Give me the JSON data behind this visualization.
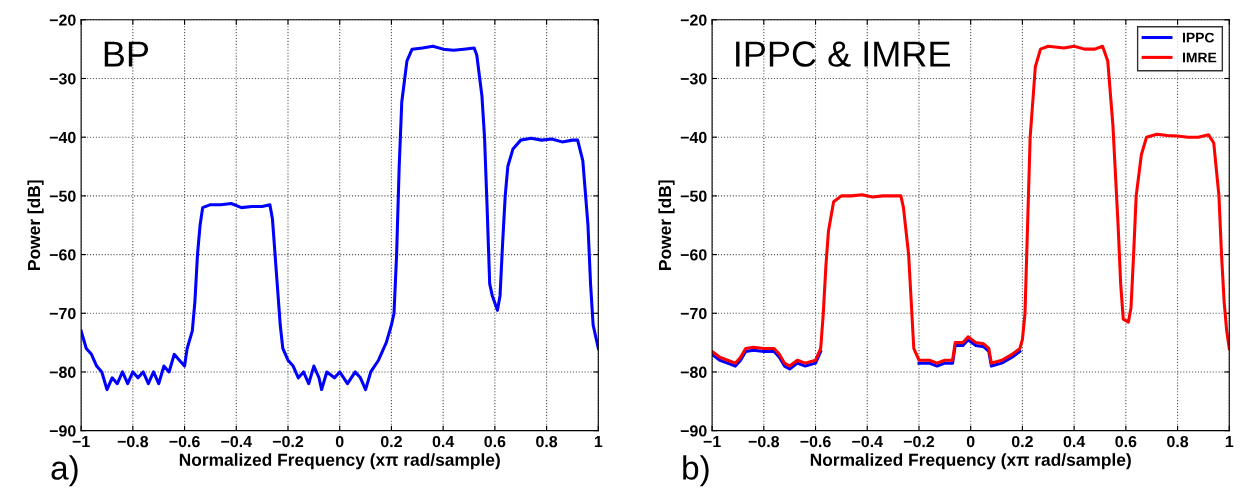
{
  "chart_data": [
    {
      "type": "line",
      "title": "BP",
      "xlabel": "Normalized Frequency (xπ rad/sample)",
      "ylabel": "Power [dB]",
      "annotations": [
        "a)"
      ],
      "xlim": [
        -1,
        1
      ],
      "ylim": [
        -90,
        -20
      ],
      "xticks": [
        {
          "value": -1,
          "label": "−1"
        },
        {
          "value": -0.8,
          "label": "−0.8"
        },
        {
          "value": -0.6,
          "label": "−0.6"
        },
        {
          "value": -0.4,
          "label": "−0.4"
        },
        {
          "value": -0.2,
          "label": "−0.2"
        },
        0,
        0.2,
        0.4,
        0.6,
        0.8,
        1
      ],
      "yticks": [
        {
          "value": -90,
          "label": "−90"
        },
        {
          "value": -80,
          "label": "−80"
        },
        {
          "value": -70,
          "label": "−70"
        },
        {
          "value": -60,
          "label": "−60"
        },
        {
          "value": -50,
          "label": "−50"
        },
        {
          "value": -40,
          "label": "−40"
        },
        {
          "value": -30,
          "label": "−30"
        },
        {
          "value": -20,
          "label": "−20"
        }
      ],
      "grid": true,
      "legend": false,
      "marker": "none",
      "line_style": "solid",
      "x": [
        -1,
        -0.98,
        -0.96,
        -0.94,
        -0.92,
        -0.9,
        -0.88,
        -0.86,
        -0.84,
        -0.82,
        -0.8,
        -0.78,
        -0.76,
        -0.74,
        -0.72,
        -0.7,
        -0.68,
        -0.66,
        -0.64,
        -0.62,
        -0.6,
        -0.59,
        -0.57,
        -0.56,
        -0.55,
        -0.54,
        -0.53,
        -0.5,
        -0.46,
        -0.42,
        -0.38,
        -0.34,
        -0.3,
        -0.27,
        -0.26,
        -0.25,
        -0.24,
        -0.23,
        -0.22,
        -0.2,
        -0.18,
        -0.16,
        -0.14,
        -0.12,
        -0.1,
        -0.08,
        -0.07,
        -0.05,
        -0.02,
        0,
        0.03,
        0.06,
        0.08,
        0.1,
        0.12,
        0.15,
        0.18,
        0.2,
        0.21,
        0.22,
        0.23,
        0.24,
        0.26,
        0.28,
        0.32,
        0.36,
        0.4,
        0.44,
        0.48,
        0.52,
        0.53,
        0.55,
        0.56,
        0.57,
        0.58,
        0.59,
        0.61,
        0.62,
        0.63,
        0.64,
        0.65,
        0.67,
        0.7,
        0.74,
        0.78,
        0.82,
        0.86,
        0.9,
        0.92,
        0.94,
        0.96,
        0.97,
        0.98,
        0.99,
        1
      ],
      "series": [
        {
          "color": "#0000ff",
          "values": [
            -73,
            -76,
            -77,
            -79,
            -80,
            -83,
            -81,
            -82,
            -80,
            -82,
            -80,
            -81,
            -80,
            -82,
            -80,
            -82,
            -79,
            -80,
            -77,
            -78,
            -79,
            -76,
            -73,
            -68,
            -60,
            -55,
            -52,
            -51.5,
            -51.5,
            -51.3,
            -52,
            -51.8,
            -51.8,
            -51.5,
            -54,
            -60,
            -66,
            -72,
            -76,
            -78,
            -79,
            -81,
            -80,
            -82,
            -79,
            -81,
            -83,
            -80,
            -81,
            -80,
            -82,
            -80,
            -81,
            -83,
            -80,
            -78,
            -75,
            -72,
            -70,
            -60,
            -45,
            -34,
            -27,
            -25,
            -24.8,
            -24.5,
            -25,
            -25.2,
            -25,
            -24.8,
            -26,
            -33,
            -40,
            -52,
            -65,
            -67,
            -69.5,
            -67,
            -58,
            -50,
            -45,
            -42,
            -40.5,
            -40.2,
            -40.5,
            -40.3,
            -40.8,
            -40.5,
            -40.5,
            -44,
            -55,
            -65,
            -72,
            -74,
            -76
          ]
        }
      ]
    },
    {
      "type": "line",
      "title": "IPPC & IMRE",
      "xlabel": "Normalized Frequency (xπ rad/sample)",
      "ylabel": "Power [dB]",
      "annotations": [
        "b)"
      ],
      "xlim": [
        -1,
        1
      ],
      "ylim": [
        -90,
        -20
      ],
      "xticks": [
        {
          "value": -1,
          "label": "−1"
        },
        {
          "value": -0.8,
          "label": "−0.8"
        },
        {
          "value": -0.6,
          "label": "−0.6"
        },
        {
          "value": -0.4,
          "label": "−0.4"
        },
        {
          "value": -0.2,
          "label": "−0.2"
        },
        0,
        0.2,
        0.4,
        0.6,
        0.8,
        1
      ],
      "yticks": [
        {
          "value": -90,
          "label": "−90"
        },
        {
          "value": -80,
          "label": "−80"
        },
        {
          "value": -70,
          "label": "−70"
        },
        {
          "value": -60,
          "label": "−60"
        },
        {
          "value": -50,
          "label": "−50"
        },
        {
          "value": -40,
          "label": "−40"
        },
        {
          "value": -30,
          "label": "−30"
        },
        {
          "value": -20,
          "label": "−20"
        }
      ],
      "grid": true,
      "legend": "top right",
      "marker": "none",
      "line_style": "solid",
      "x": [
        -1,
        -0.97,
        -0.94,
        -0.91,
        -0.89,
        -0.87,
        -0.84,
        -0.8,
        -0.76,
        -0.74,
        -0.72,
        -0.7,
        -0.67,
        -0.64,
        -0.6,
        -0.58,
        -0.57,
        -0.56,
        -0.55,
        -0.53,
        -0.5,
        -0.46,
        -0.42,
        -0.38,
        -0.34,
        -0.3,
        -0.27,
        -0.26,
        -0.24,
        -0.23,
        -0.22,
        -0.2,
        -0.16,
        -0.13,
        -0.1,
        -0.07,
        -0.06,
        -0.03,
        -0.01,
        0.02,
        0.05,
        0.07,
        0.08,
        0.12,
        0.16,
        0.19,
        0.2,
        0.21,
        0.22,
        0.23,
        0.25,
        0.27,
        0.3,
        0.36,
        0.4,
        0.44,
        0.48,
        0.51,
        0.53,
        0.55,
        0.57,
        0.58,
        0.59,
        0.61,
        0.62,
        0.63,
        0.64,
        0.66,
        0.68,
        0.72,
        0.76,
        0.8,
        0.84,
        0.88,
        0.92,
        0.94,
        0.96,
        0.97,
        0.98,
        0.99,
        1
      ],
      "series": [
        {
          "name": "IPPC",
          "color": "#0000ff",
          "values": [
            -77,
            -78,
            -78.5,
            -79,
            -78,
            -76.5,
            -76.3,
            -76.5,
            -76.5,
            -77.5,
            -79,
            -79.5,
            -78.5,
            -79,
            -78.5,
            -76.5,
            null,
            null,
            null,
            null,
            null,
            null,
            null,
            null,
            null,
            null,
            null,
            null,
            null,
            null,
            null,
            -78.5,
            -78.5,
            -79,
            -78.5,
            -78.5,
            -75.5,
            -75.5,
            -74.5,
            -75.5,
            -75.7,
            -76.5,
            -79,
            -78.5,
            -77.5,
            -76.5,
            null,
            null,
            null,
            null,
            null,
            null,
            null,
            null,
            null,
            null,
            null,
            null,
            null,
            null,
            null,
            null,
            null,
            null,
            null,
            null,
            null,
            null,
            null,
            null,
            null,
            null,
            null,
            null,
            null,
            null,
            null,
            null,
            null,
            null,
            null
          ]
        },
        {
          "name": "IMRE",
          "color": "#ff0000",
          "values": [
            -76.5,
            -77.5,
            -78,
            -78.5,
            -77.5,
            -76,
            -75.8,
            -76,
            -76,
            -77,
            -78.5,
            -79,
            -78,
            -78.5,
            -78,
            -76,
            -70,
            -62,
            -56,
            -51,
            -50,
            -50,
            -49.8,
            -50.2,
            -50,
            -50,
            -50,
            -52,
            -60,
            -68,
            -76,
            -78,
            -78,
            -78.5,
            -78,
            -78,
            -75,
            -75,
            -74,
            -75,
            -75.2,
            -76,
            -78.5,
            -78,
            -77,
            -76,
            -74.5,
            -70,
            -55,
            -40,
            -28,
            -25,
            -24.5,
            -24.8,
            -24.5,
            -25,
            -25,
            -24.5,
            -27,
            -38,
            -55,
            -65,
            -71,
            -71.5,
            -69,
            -60,
            -50,
            -43,
            -40,
            -39.5,
            -39.7,
            -39.8,
            -40,
            -40,
            -39.6,
            -41,
            -50,
            -60,
            -68,
            -73,
            -76
          ]
        }
      ]
    }
  ]
}
